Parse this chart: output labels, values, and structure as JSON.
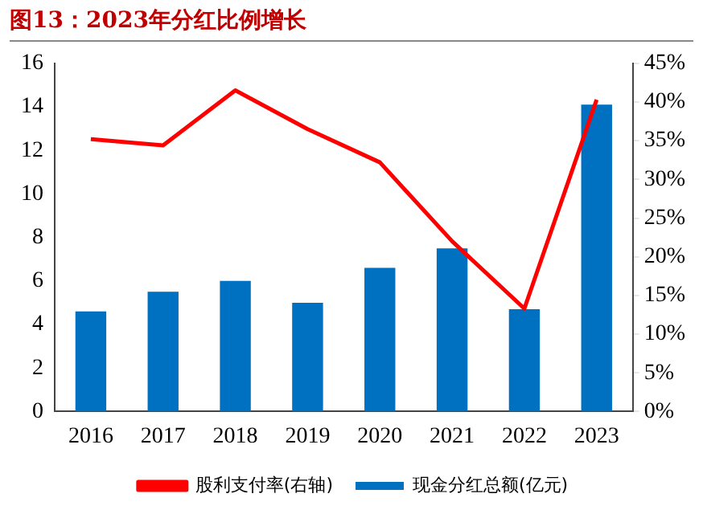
{
  "chart_data": {
    "type": "bar",
    "title": "图13：2023年分红比例增长",
    "categories": [
      "2016",
      "2017",
      "2018",
      "2019",
      "2020",
      "2021",
      "2022",
      "2023"
    ],
    "series": [
      {
        "name": "现金分红总额(亿元)",
        "color": "#0070c0",
        "values": [
          4.6,
          5.5,
          6.0,
          5.0,
          6.6,
          7.5,
          4.7,
          14.1
        ]
      },
      {
        "name": "股利支付率(右轴)",
        "type": "line",
        "axis": "y2",
        "color": "#ff0000",
        "values": [
          35.2,
          34.4,
          41.5,
          36.5,
          32.2,
          22.0,
          13.3,
          40.3
        ]
      }
    ],
    "ylim": [
      0,
      16
    ],
    "yticks": [
      0,
      2,
      4,
      6,
      8,
      10,
      12,
      14,
      16
    ],
    "y2lim": [
      0,
      45
    ],
    "y2ticks": [
      {
        "value": 0,
        "label": "0%"
      },
      {
        "value": 5,
        "label": "5%"
      },
      {
        "value": 10,
        "label": "10%"
      },
      {
        "value": 15,
        "label": "15%"
      },
      {
        "value": 20,
        "label": "20%"
      },
      {
        "value": 25,
        "label": "25%"
      },
      {
        "value": 30,
        "label": "30%"
      },
      {
        "value": 35,
        "label": "35%"
      },
      {
        "value": 40,
        "label": "40%"
      },
      {
        "value": 45,
        "label": "45%"
      }
    ],
    "grid": false,
    "legend": "bottom",
    "marker": "none"
  }
}
